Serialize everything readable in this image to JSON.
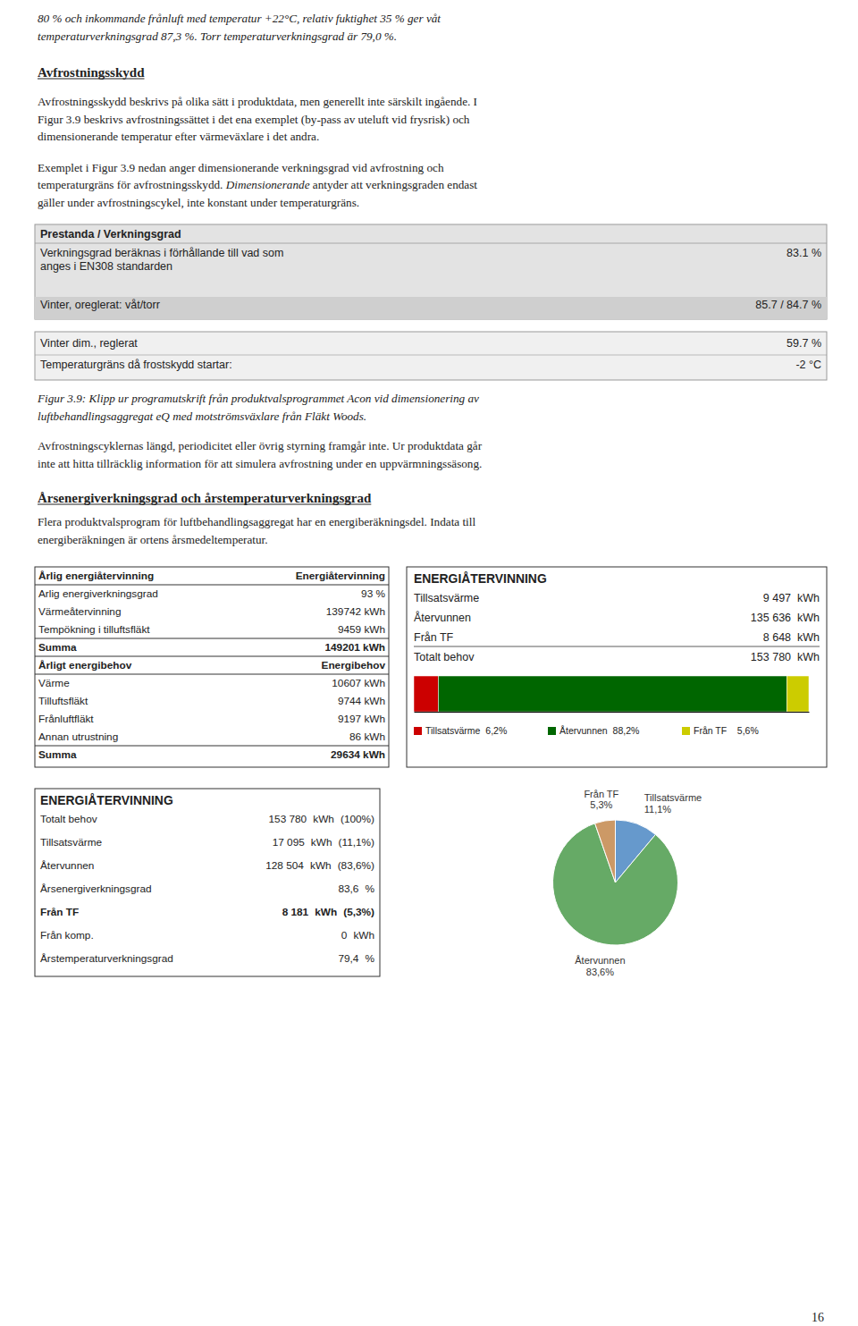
{
  "page": {
    "intro": [
      "80 % och inkommande frånluft med temperatur +22°C, relativ fuktighet 35 % ger våt",
      "temperaturverkningsgrad 87,3 %. Torr temperaturverkningsgrad är 79,0 %."
    ],
    "heading1": "Avfrostningsskydd",
    "p1": [
      "Avfrostningsskydd beskrivs på olika sätt i produktdata, men generellt inte särskilt ingående. I",
      "Figur 3.9 beskrivs avfrostningssättet i det ena exemplet (by-pass av uteluft vid frysrisk) och",
      "dimensionerande temperatur efter värmeväxlare i det andra."
    ],
    "p2_line1": "Exemplet i Figur 3.9 nedan anger dimensionerande verkningsgrad vid avfrostning och",
    "p2_line2": [
      "temperaturgräns för avfrostningsskydd. ",
      "Dimensionerande",
      " antyder att verkningsgraden endast"
    ],
    "p2_line3": "gäller under avfrostningscykel, inte konstant under temperaturgräns.",
    "box1": {
      "title": "Prestanda / Verkningsgrad",
      "rows": [
        {
          "label": [
            "Verkningsgrad beräknas i förhållande till vad som",
            "anges i EN308 standarden"
          ],
          "value": "83.1 %"
        },
        {
          "label": [
            "Vinter, oreglerat: våt/torr"
          ],
          "value": "85.7 / 84.7 %"
        }
      ]
    },
    "box2": {
      "rows": [
        [
          "Vinter dim., reglerat",
          "59.7 %"
        ],
        [
          "Temperaturgräns då frostskydd startar:",
          "-2 °C"
        ]
      ]
    },
    "caption": [
      "Figur 3.9: Klipp ur programutskrift från produktvalsprogrammet Acon vid dimensionering av",
      "luftbehandlingsaggregat eQ med motströmsväxlare från Fläkt Woods."
    ],
    "p3": [
      "Avfrostningscyklernas längd, periodicitet eller övrig styrning framgår inte. Ur produktdata går",
      "inte att hitta tillräcklig information för att simulera avfrostning under en uppvärmningssäsong."
    ],
    "heading2": "Årsenergiverkningsgrad och årstemperaturverkningsgrad",
    "p4": [
      "Flera produktvalsprogram för luftbehandlingsaggregat har en energiberäkningsdel. Indata till",
      "energiberäkningen är ortens årsmedeltemperatur."
    ],
    "table1": {
      "sections": [
        {
          "header": [
            "Årlig energiåtervinning",
            "Energiåtervinning"
          ],
          "rows": [
            [
              "Arlig energiverkningsgrad",
              "93 %"
            ],
            [
              "Värmeåtervinning",
              "139742 kWh"
            ],
            [
              "Tempökning i tilluftsfläkt",
              "9459 kWh"
            ]
          ],
          "total": [
            "Summa",
            "149201 kWh"
          ]
        },
        {
          "header": [
            "Årligt energibehov",
            "Energibehov"
          ],
          "rows": [
            [
              "Värme",
              "10607 kWh"
            ],
            [
              "Tilluftsfläkt",
              "9744 kWh"
            ],
            [
              "Frånluftfläkt",
              "9197 kWh"
            ],
            [
              "Annan utrustning",
              "86 kWh"
            ]
          ],
          "total": [
            "Summa",
            "29634 kWh"
          ]
        }
      ]
    },
    "energy_box1_rows": [
      [
        "Tillsatsvärme",
        "9 497  kWh"
      ],
      [
        "Återvunnen",
        "135 636  kWh"
      ],
      [
        "Från TF",
        "8 648  kWh"
      ],
      [
        "Totalt behov",
        "153 780  kWh"
      ]
    ],
    "energy_box2_rows": [
      [
        "Totalt behov",
        "153 780",
        "kWh",
        "(100%)"
      ],
      [
        "Tillsatsvärme",
        "17 095",
        "kWh",
        "(11,1%)"
      ],
      [
        "Återvunnen",
        "128 504",
        "kWh",
        "(83,6%)"
      ],
      [
        "Årsenergiverkningsgrad",
        "83,6",
        "%",
        ""
      ],
      [
        "Från TF",
        "8 181",
        "kWh",
        "(5,3%)"
      ],
      [
        "Från komp.",
        "0",
        "kWh",
        ""
      ],
      [
        "Årstemperaturverkningsgrad",
        "79,4",
        "%",
        ""
      ]
    ],
    "page_number": "16"
  },
  "chart_data": [
    {
      "type": "bar",
      "title": "ENERGIÅTERVINNING",
      "orientation": "horizontal",
      "stacked": true,
      "categories": [
        null
      ],
      "series": [
        {
          "name": "Tillsatsvärme  6,2%",
          "color": "#cc0000",
          "values": [
            6.2
          ]
        },
        {
          "name": "Återvunnen  88,2%",
          "color": "#006600",
          "values": [
            88.2
          ]
        },
        {
          "name": "Från TF    5,6%",
          "color": "#cccc00",
          "values": [
            5.6
          ]
        }
      ],
      "xlim": [
        0,
        100
      ],
      "tick_labels": false,
      "legend": "bottom"
    },
    {
      "type": "pie",
      "title": "ENERGIÅTERVINNING",
      "categories": [
        "Tillsatsvärme",
        "Återvunnen",
        "Från TF"
      ],
      "values": [
        11.1,
        83.6,
        5.3
      ],
      "value_labels": [
        "11,1%",
        "83,6%",
        "5,3%"
      ],
      "colors": [
        "#6699cc",
        "#66aa66",
        "#cc9966"
      ],
      "data_labels": true
    }
  ]
}
